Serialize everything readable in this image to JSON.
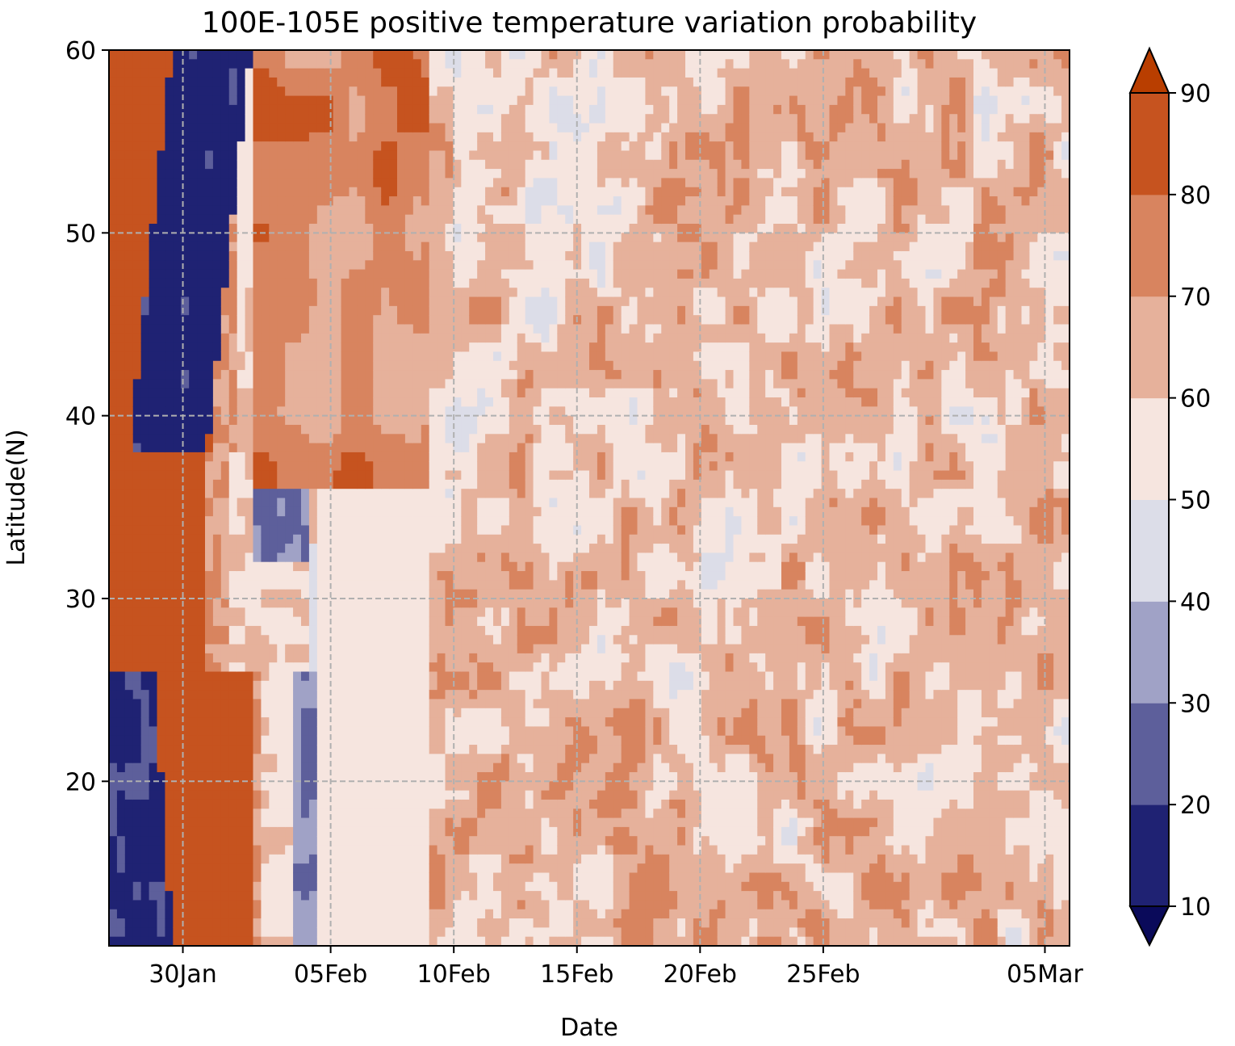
{
  "chart_data": {
    "type": "heatmap",
    "title": "100E-105E positive temperature variation probability",
    "xlabel": "Date",
    "ylabel": "Latitude(N)",
    "x_range": [
      "2024-01-27",
      "2024-03-06"
    ],
    "ylim": [
      11,
      60
    ],
    "xticks": [
      {
        "date": "2024-01-30",
        "label": "30Jan"
      },
      {
        "date": "2024-02-05",
        "label": "05Feb"
      },
      {
        "date": "2024-02-10",
        "label": "10Feb"
      },
      {
        "date": "2024-02-15",
        "label": "15Feb"
      },
      {
        "date": "2024-02-20",
        "label": "20Feb"
      },
      {
        "date": "2024-02-25",
        "label": "25Feb"
      },
      {
        "date": "2024-03-05",
        "label": "05Mar"
      }
    ],
    "yticks": [
      {
        "value": 20,
        "label": "20"
      },
      {
        "value": 30,
        "label": "30"
      },
      {
        "value": 40,
        "label": "40"
      },
      {
        "value": 50,
        "label": "50"
      },
      {
        "value": 60,
        "label": "60"
      }
    ],
    "grid": true,
    "colorbar": {
      "levels": [
        10,
        20,
        30,
        40,
        50,
        60,
        70,
        80,
        90
      ],
      "labels": [
        "10",
        "20",
        "30",
        "40",
        "50",
        "60",
        "70",
        "80",
        "90"
      ],
      "colors": [
        "#0a0a5a",
        "#1f2273",
        "#5d5f9b",
        "#a0a2c6",
        "#dcdde8",
        "#f6e5df",
        "#e6b19b",
        "#d8845f",
        "#c6531f",
        "#b93e00"
      ],
      "extend": "both"
    },
    "bands": [
      {
        "name": "west-blue-north",
        "lat": [
          38,
          60
        ],
        "date_start": "2024-01-27",
        "value_range": [
          10,
          30
        ]
      },
      {
        "name": "west-red-core",
        "lat": [
          11,
          60
        ],
        "date_start": "2024-01-27",
        "value_range": [
          80,
          90
        ]
      },
      {
        "name": "west-blue-south",
        "lat": [
          11,
          26
        ],
        "date_start": "2024-01-27",
        "value_range": [
          10,
          30
        ]
      },
      {
        "name": "feb-blue-bands",
        "lat": [
          11,
          47
        ],
        "date_start": "2024-02-01",
        "value_range": [
          10,
          40
        ]
      },
      {
        "name": "feb-orange-north",
        "lat": [
          38,
          60
        ],
        "date_start": "2024-02-02",
        "value_range": [
          60,
          90
        ]
      },
      {
        "name": "mid-feb-mixed",
        "lat": [
          11,
          60
        ],
        "date_start": "2024-02-10",
        "value_range": [
          40,
          80
        ]
      },
      {
        "name": "late-feb-orange",
        "lat": [
          11,
          60
        ],
        "date_start": "2024-02-20",
        "value_range": [
          50,
          80
        ]
      }
    ]
  }
}
